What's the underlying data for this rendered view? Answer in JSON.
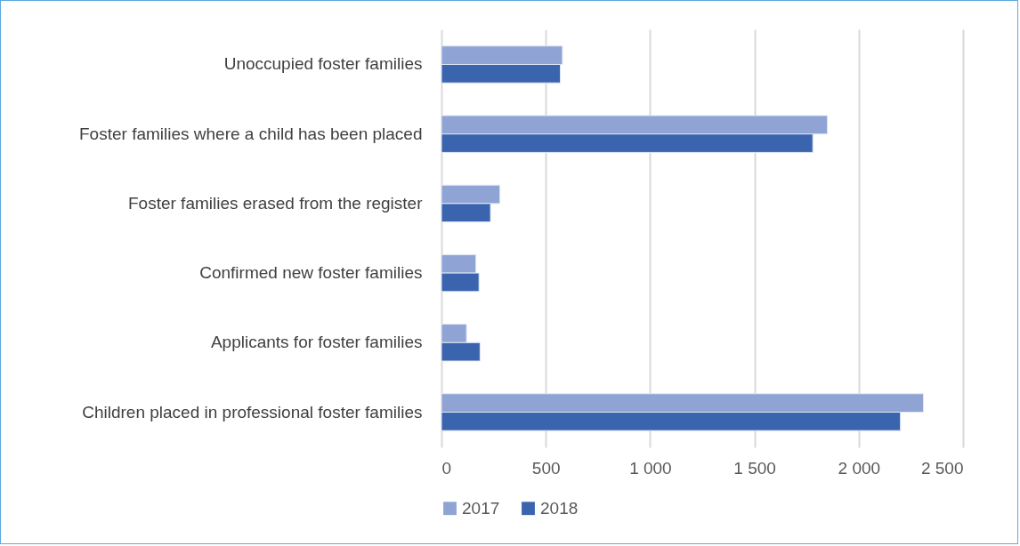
{
  "chart_data": {
    "type": "bar",
    "orientation": "horizontal",
    "categories": [
      "Unoccupied foster families",
      "Foster families where a child has been placed",
      "Foster families erased from the register",
      "Confirmed new foster families",
      "Applicants for foster families",
      "Children placed in professional foster families"
    ],
    "series": [
      {
        "name": "2017",
        "color": "#8fa4d4",
        "values": [
          580,
          1850,
          280,
          165,
          120,
          2310
        ]
      },
      {
        "name": "2018",
        "color": "#3a64ad",
        "values": [
          570,
          1780,
          235,
          180,
          185,
          2200
        ]
      }
    ],
    "xlim": [
      0,
      2500
    ],
    "xticks": [
      0,
      500,
      {
        "value": 1000,
        "label": "1 000"
      },
      {
        "value": 1500,
        "label": "1 500"
      },
      {
        "value": 2000,
        "label": "2 000"
      },
      {
        "value": 2500,
        "label": "2 500"
      }
    ],
    "grid": "x",
    "legend": "bottom"
  }
}
